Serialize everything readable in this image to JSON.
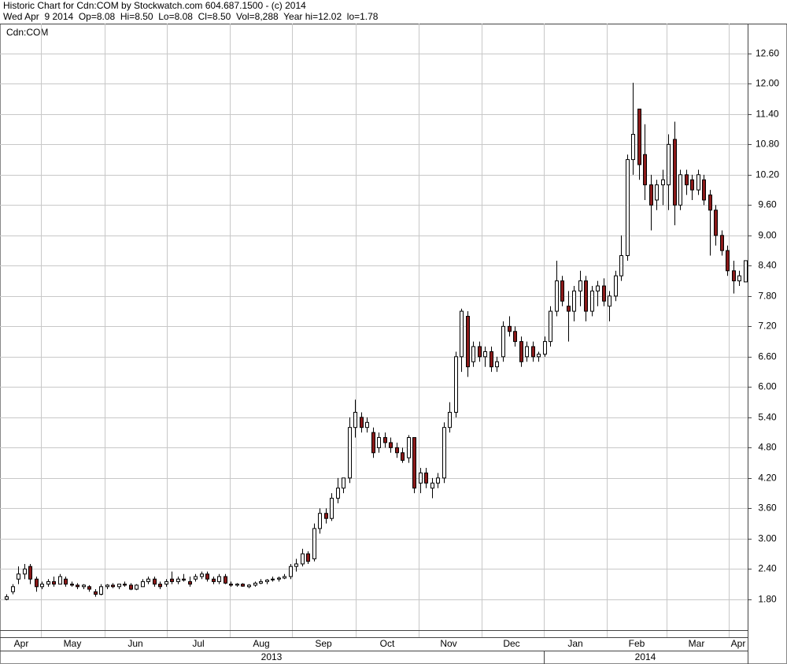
{
  "chart_data": {
    "type": "candlestick",
    "title": "Historic Chart for Cdn:COM by Stockwatch.com 604.687.1500 - (c) 2014",
    "subtitle": "Wed Apr  9 2014  Op=8.08  Hi=8.50  Lo=8.08  Cl=8.50  Vol=8,288  Year hi=12.02  lo=1.78",
    "symbol": "Cdn:COM",
    "up_color": "#ffffff",
    "down_color": "#8b1a1a",
    "grid": true,
    "ylim": [
      1.19,
      13.19
    ],
    "yticks": [
      {
        "value": 1.8,
        "label": "1.80"
      },
      {
        "value": 2.4,
        "label": "2.40"
      },
      {
        "value": 3.0,
        "label": "3.00"
      },
      {
        "value": 3.6,
        "label": "3.60"
      },
      {
        "value": 4.2,
        "label": "4.20"
      },
      {
        "value": 4.8,
        "label": "4.80"
      },
      {
        "value": 5.4,
        "label": "5.40"
      },
      {
        "value": 6.0,
        "label": "6.00"
      },
      {
        "value": 6.6,
        "label": "6.60"
      },
      {
        "value": 7.2,
        "label": "7.20"
      },
      {
        "value": 7.8,
        "label": "7.80"
      },
      {
        "value": 8.4,
        "label": "8.40"
      },
      {
        "value": 9.0,
        "label": "9.00"
      },
      {
        "value": 9.6,
        "label": "9.60"
      },
      {
        "value": 10.2,
        "label": "10.20"
      },
      {
        "value": 10.8,
        "label": "10.80"
      },
      {
        "value": 11.4,
        "label": "11.40"
      },
      {
        "value": 12.0,
        "label": "12.00"
      },
      {
        "value": 12.6,
        "label": "12.60"
      }
    ],
    "months": [
      "Apr",
      "May",
      "Jun",
      "Jul",
      "Aug",
      "Sep",
      "Oct",
      "Nov",
      "Dec",
      "Jan",
      "Feb",
      "Mar",
      "Apr"
    ],
    "years": [
      "2013",
      "2014"
    ],
    "ohlc": [
      [
        1.8,
        1.9,
        1.78,
        1.85
      ],
      [
        1.95,
        2.1,
        1.9,
        2.05
      ],
      [
        2.2,
        2.45,
        2.1,
        2.3
      ],
      [
        2.3,
        2.5,
        2.2,
        2.4
      ],
      [
        2.45,
        2.5,
        2.1,
        2.2
      ],
      [
        2.2,
        2.25,
        1.95,
        2.05
      ],
      [
        2.05,
        2.15,
        2.0,
        2.1
      ],
      [
        2.1,
        2.2,
        2.05,
        2.15
      ],
      [
        2.15,
        2.25,
        2.05,
        2.1
      ],
      [
        2.1,
        2.3,
        2.1,
        2.25
      ],
      [
        2.2,
        2.25,
        2.05,
        2.1
      ],
      [
        2.1,
        2.15,
        2.05,
        2.08
      ],
      [
        2.08,
        2.12,
        2.0,
        2.05
      ],
      [
        2.05,
        2.1,
        2.0,
        2.08
      ],
      [
        2.05,
        2.08,
        1.95,
        2.0
      ],
      [
        1.95,
        2.0,
        1.85,
        1.9
      ],
      [
        1.9,
        2.1,
        1.88,
        2.05
      ],
      [
        2.05,
        2.1,
        2.0,
        2.08
      ],
      [
        2.08,
        2.12,
        2.02,
        2.05
      ],
      [
        2.05,
        2.1,
        2.0,
        2.1
      ],
      [
        2.1,
        2.15,
        2.05,
        2.08
      ],
      [
        2.08,
        2.12,
        1.98,
        2.0
      ],
      [
        2.0,
        2.1,
        1.98,
        2.08
      ],
      [
        2.05,
        2.2,
        2.05,
        2.15
      ],
      [
        2.15,
        2.25,
        2.1,
        2.2
      ],
      [
        2.2,
        2.25,
        2.05,
        2.1
      ],
      [
        2.1,
        2.15,
        2.0,
        2.05
      ],
      [
        2.1,
        2.2,
        2.05,
        2.15
      ],
      [
        2.2,
        2.35,
        2.1,
        2.15
      ],
      [
        2.15,
        2.25,
        2.1,
        2.2
      ],
      [
        2.2,
        2.3,
        2.15,
        2.18
      ],
      [
        2.15,
        2.25,
        2.05,
        2.1
      ],
      [
        2.2,
        2.3,
        2.15,
        2.25
      ],
      [
        2.25,
        2.35,
        2.2,
        2.3
      ],
      [
        2.3,
        2.35,
        2.15,
        2.2
      ],
      [
        2.2,
        2.25,
        2.1,
        2.15
      ],
      [
        2.15,
        2.3,
        2.1,
        2.25
      ],
      [
        2.25,
        2.3,
        2.1,
        2.12
      ],
      [
        2.1,
        2.15,
        2.05,
        2.08
      ],
      [
        2.08,
        2.12,
        2.05,
        2.1
      ],
      [
        2.1,
        2.12,
        2.05,
        2.06
      ],
      [
        2.05,
        2.1,
        2.02,
        2.08
      ],
      [
        2.08,
        2.15,
        2.05,
        2.12
      ],
      [
        2.12,
        2.2,
        2.1,
        2.15
      ],
      [
        2.15,
        2.2,
        2.1,
        2.18
      ],
      [
        2.2,
        2.25,
        2.15,
        2.2
      ],
      [
        2.2,
        2.25,
        2.15,
        2.22
      ],
      [
        2.22,
        2.3,
        2.2,
        2.25
      ],
      [
        2.25,
        2.5,
        2.2,
        2.45
      ],
      [
        2.45,
        2.6,
        2.35,
        2.5
      ],
      [
        2.5,
        2.8,
        2.45,
        2.7
      ],
      [
        2.7,
        2.75,
        2.5,
        2.55
      ],
      [
        2.6,
        3.3,
        2.55,
        3.2
      ],
      [
        3.2,
        3.6,
        3.1,
        3.5
      ],
      [
        3.5,
        3.6,
        3.3,
        3.4
      ],
      [
        3.4,
        3.9,
        3.35,
        3.8
      ],
      [
        3.8,
        4.2,
        3.7,
        4.0
      ],
      [
        4.0,
        4.2,
        3.9,
        4.2
      ],
      [
        4.2,
        5.4,
        4.1,
        5.2
      ],
      [
        5.2,
        5.75,
        5.0,
        5.5
      ],
      [
        5.4,
        5.5,
        5.1,
        5.2
      ],
      [
        5.2,
        5.4,
        5.1,
        5.3
      ],
      [
        5.1,
        5.2,
        4.6,
        4.7
      ],
      [
        4.8,
        5.1,
        4.7,
        5.0
      ],
      [
        5.0,
        5.1,
        4.8,
        4.9
      ],
      [
        4.9,
        5.0,
        4.7,
        4.8
      ],
      [
        4.8,
        4.9,
        4.6,
        4.7
      ],
      [
        4.7,
        4.8,
        4.5,
        4.55
      ],
      [
        4.6,
        5.05,
        4.5,
        5.0
      ],
      [
        5.0,
        5.0,
        3.9,
        4.0
      ],
      [
        4.1,
        4.4,
        3.9,
        4.3
      ],
      [
        4.3,
        4.4,
        4.0,
        4.1
      ],
      [
        4.0,
        4.2,
        3.8,
        4.1
      ],
      [
        4.1,
        4.3,
        4.0,
        4.2
      ],
      [
        4.2,
        5.3,
        4.1,
        5.2
      ],
      [
        5.2,
        5.7,
        5.1,
        5.5
      ],
      [
        5.5,
        6.7,
        5.4,
        6.6
      ],
      [
        6.6,
        7.55,
        6.3,
        7.5
      ],
      [
        7.4,
        7.5,
        6.2,
        6.4
      ],
      [
        6.5,
        6.9,
        6.4,
        6.8
      ],
      [
        6.8,
        6.9,
        6.5,
        6.6
      ],
      [
        6.6,
        6.8,
        6.4,
        6.7
      ],
      [
        6.7,
        6.8,
        6.3,
        6.4
      ],
      [
        6.4,
        6.6,
        6.3,
        6.5
      ],
      [
        6.6,
        7.3,
        6.5,
        7.2
      ],
      [
        7.2,
        7.4,
        7.0,
        7.1
      ],
      [
        7.1,
        7.2,
        6.8,
        6.9
      ],
      [
        6.9,
        7.0,
        6.4,
        6.5
      ],
      [
        6.6,
        6.9,
        6.5,
        6.8
      ],
      [
        6.8,
        6.9,
        6.5,
        6.6
      ],
      [
        6.6,
        6.7,
        6.5,
        6.65
      ],
      [
        6.65,
        7.0,
        6.6,
        6.9
      ],
      [
        6.9,
        7.6,
        6.8,
        7.5
      ],
      [
        7.5,
        8.5,
        7.4,
        8.1
      ],
      [
        8.1,
        8.2,
        7.6,
        7.7
      ],
      [
        7.6,
        7.9,
        6.9,
        7.5
      ],
      [
        7.5,
        8.0,
        7.3,
        7.9
      ],
      [
        7.9,
        8.3,
        7.6,
        8.1
      ],
      [
        8.1,
        8.2,
        7.3,
        7.5
      ],
      [
        7.5,
        8.0,
        7.4,
        7.9
      ],
      [
        7.9,
        8.1,
        7.6,
        8.0
      ],
      [
        8.0,
        8.15,
        7.6,
        7.7
      ],
      [
        7.6,
        7.9,
        7.3,
        7.8
      ],
      [
        7.8,
        8.3,
        7.7,
        8.2
      ],
      [
        8.2,
        9.0,
        8.1,
        8.6
      ],
      [
        8.6,
        10.6,
        8.5,
        10.5
      ],
      [
        10.5,
        12.02,
        10.2,
        11.0
      ],
      [
        11.5,
        11.5,
        10.1,
        10.4
      ],
      [
        10.6,
        11.2,
        9.7,
        10.0
      ],
      [
        10.0,
        10.2,
        9.1,
        9.6
      ],
      [
        9.7,
        10.1,
        9.5,
        10.0
      ],
      [
        10.0,
        10.3,
        9.6,
        10.1
      ],
      [
        10.0,
        11.0,
        9.5,
        10.8
      ],
      [
        10.9,
        11.25,
        9.2,
        9.6
      ],
      [
        9.6,
        10.3,
        9.5,
        10.2
      ],
      [
        10.2,
        10.3,
        9.8,
        10.0
      ],
      [
        10.1,
        10.2,
        9.7,
        9.9
      ],
      [
        9.9,
        10.3,
        9.8,
        10.2
      ],
      [
        10.1,
        10.2,
        9.6,
        9.7
      ],
      [
        9.8,
        9.9,
        8.6,
        9.5
      ],
      [
        9.5,
        9.6,
        8.8,
        9.0
      ],
      [
        9.0,
        9.1,
        8.6,
        8.7
      ],
      [
        8.7,
        8.8,
        8.2,
        8.3
      ],
      [
        8.3,
        8.5,
        7.85,
        8.1
      ],
      [
        8.1,
        8.3,
        8.0,
        8.2
      ],
      [
        8.08,
        8.5,
        8.08,
        8.5
      ]
    ]
  }
}
